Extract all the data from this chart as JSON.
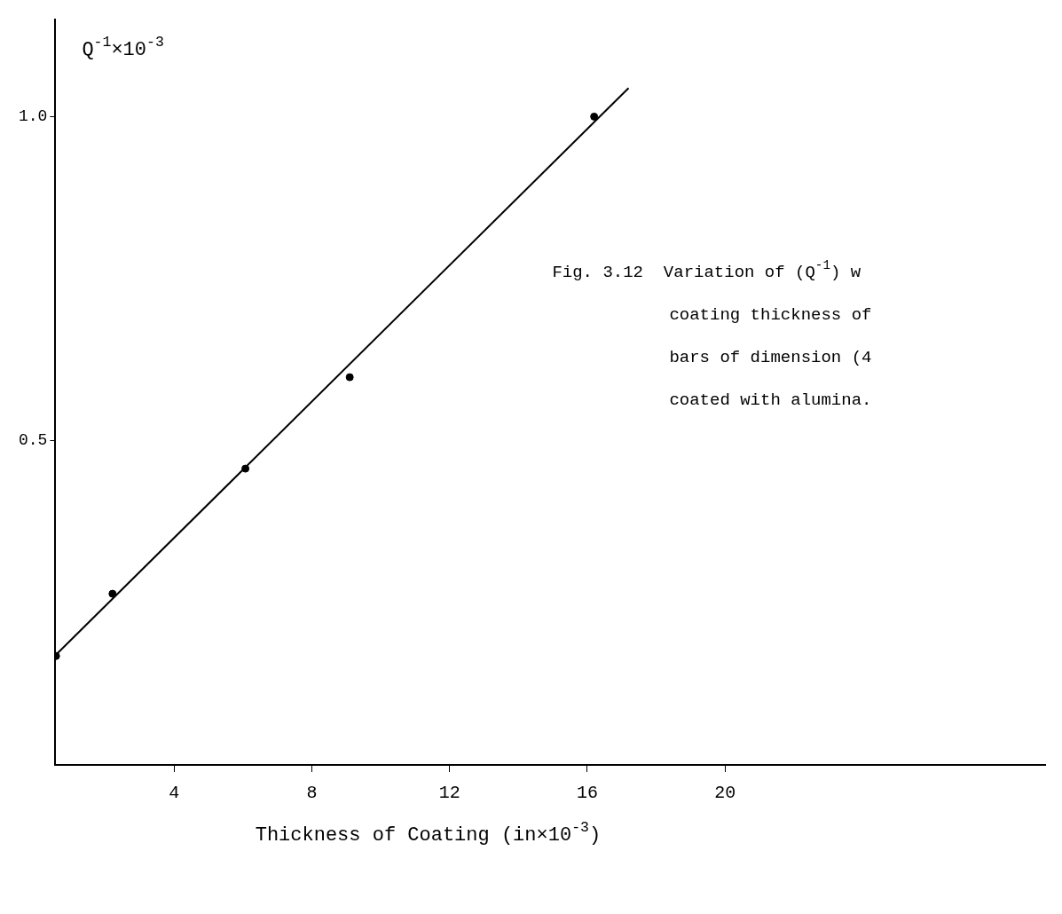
{
  "chart_data": {
    "type": "scatter",
    "xlabel": "Thickness of Coating (in×10$^{-3}$)",
    "ylabel": "Q$^{-1}$×10$^{-3}$",
    "xlim": [
      0.55,
      29.3
    ],
    "xticks": [
      4,
      8,
      12,
      16,
      20
    ],
    "ylim": [
      0,
      1.15
    ],
    "yticks": [
      {
        "value": 0.5,
        "label": "0.5"
      },
      {
        "value": 1,
        "label": "1.0"
      }
    ],
    "series": [
      {
        "marker": "circle",
        "color": "#000000",
        "x": [
          0.57,
          2.21,
          6.07,
          9.1,
          16.2
        ],
        "values": [
          0.168,
          0.264,
          0.457,
          0.598,
          1.0
        ]
      },
      {
        "type": "line",
        "marker": "none",
        "color": "#000000",
        "x": [
          0.57,
          17.2
        ],
        "values": [
          0.17,
          1.044
        ]
      }
    ],
    "line_style": "solid",
    "grid": false,
    "legend": false,
    "annotations": [
      "Fig. 3.12  Variation of (Q$^{-1}$) w",
      "coating thickness of",
      "bars of dimension (4",
      "coated with alumina."
    ]
  }
}
